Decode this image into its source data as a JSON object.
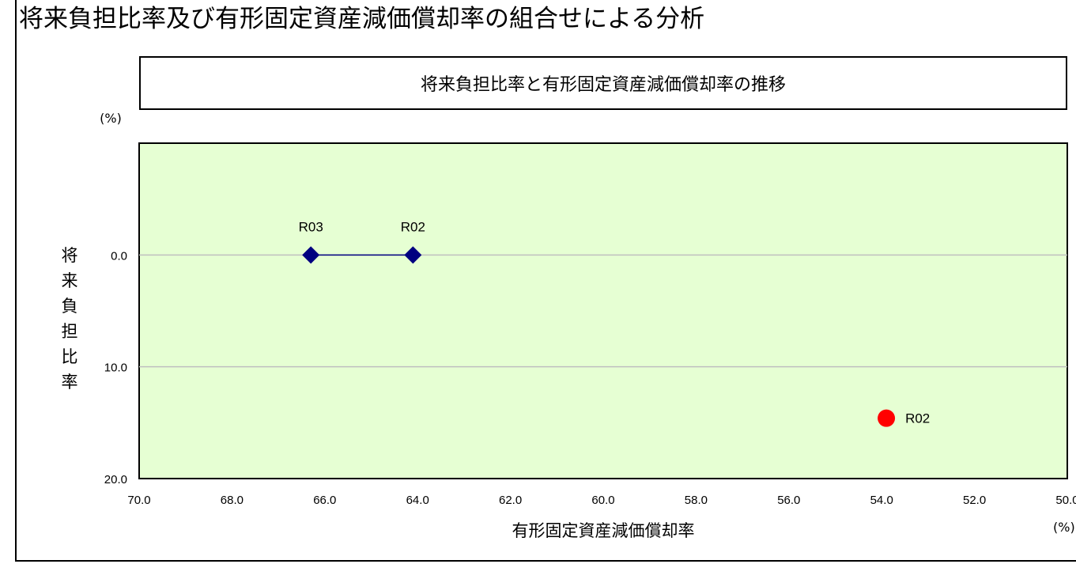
{
  "page": {
    "title": "将来負担比率及び有形固定資産減価償却率の組合せによる分析"
  },
  "chart_data": {
    "type": "scatter",
    "title": "将来負担比率と有形固定資産減価償却率の推移",
    "xlabel": "有形固定資産減価償却率",
    "ylabel": "将来負担比率",
    "x_unit": "(%)",
    "y_unit": "(%)",
    "xlim": [
      70.0,
      50.0
    ],
    "ylim": [
      -10.0,
      20.0
    ],
    "x_reversed": true,
    "y_reversed": true,
    "x_ticks": [
      "70.0",
      "68.0",
      "66.0",
      "64.0",
      "62.0",
      "60.0",
      "58.0",
      "56.0",
      "54.0",
      "52.0",
      "50.0"
    ],
    "y_ticks": [
      "0.0",
      "10.0",
      "20.0"
    ],
    "y_tick_values": [
      0.0,
      10.0,
      20.0
    ],
    "grid": true,
    "plot_background": "#e6ffd3",
    "series": [
      {
        "marker": "diamond",
        "color": "#000080",
        "connected": true,
        "points": [
          {
            "label": "R03",
            "x": 66.3,
            "y": 0.0
          },
          {
            "label": "R02",
            "x": 64.1,
            "y": 0.0
          }
        ]
      },
      {
        "marker": "circle",
        "color": "#ff0000",
        "connected": false,
        "points": [
          {
            "label": "R02",
            "x": 53.9,
            "y": 14.6
          }
        ]
      }
    ]
  }
}
